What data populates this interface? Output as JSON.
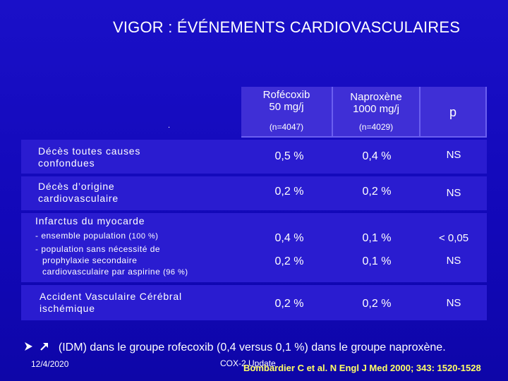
{
  "title": "VIGOR : ÉVÉNEMENTS CARDIOVASCULAIRES",
  "header": {
    "col1": {
      "name_line1": "Rofécoxib",
      "name_line2": "50 mg/j",
      "n": "(n=4047)"
    },
    "col2": {
      "name_line1": "Naproxène",
      "name_line2": "1000 mg/j",
      "n": "(n=4029)"
    },
    "col3": {
      "name": "p"
    },
    "dot": "."
  },
  "rows": {
    "deces_total": {
      "label_line1": "Décès toutes causes",
      "label_line2": "confondues",
      "rofecoxib": "0,5 %",
      "naproxene": "0,4 %",
      "p": "NS"
    },
    "deces_cv": {
      "label_line1": "Décès d’origine",
      "label_line2": "cardiovasculaire",
      "rofecoxib": "0,2 %",
      "naproxene": "0,2 %",
      "p": "NS"
    },
    "infarctus": {
      "label": "Infarctus du myocarde",
      "sub1_text": "- ensemble population ",
      "sub1_pct": "(100 %)",
      "sub2_line1": "- population sans nécessité de",
      "sub2_line2": "prophylaxie secondaire",
      "sub2_line3": "cardiovasculaire par aspirine ",
      "sub2_pct": "(96 %)",
      "row1": {
        "rofecoxib": "0,4 %",
        "naproxene": "0,1 %",
        "p": "< 0,05"
      },
      "row2": {
        "rofecoxib": "0,2 %",
        "naproxene": "0,1 %",
        "p": "NS"
      }
    },
    "avc": {
      "label_line1": "Accident Vasculaire Cérébral",
      "label_line2": "ischémique",
      "rofecoxib": "0,2 %",
      "naproxene": "0,2 %",
      "p": "NS"
    }
  },
  "bullet": {
    "text": "(IDM) dans le groupe rofecoxib (0,4 versus 0,1 %) dans le groupe naproxène."
  },
  "footer": {
    "date": "12/4/2020",
    "center": "COX-2 Update",
    "citation": "Bombardier C et al. N Engl J Med 2000; 343: 1520-1528"
  },
  "colors": {
    "background": "#1208b8",
    "band": "#2a1cd0",
    "header_cell": "#3f2fd6",
    "citation": "#ffff66"
  }
}
